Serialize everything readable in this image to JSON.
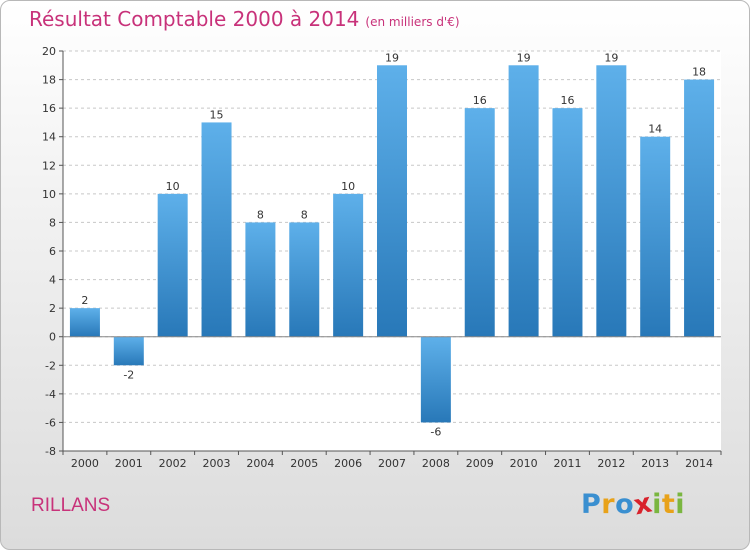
{
  "header": {
    "title": "Résultat Comptable 2000 à 2014",
    "subtitle": "(en milliers d'€)"
  },
  "footer": {
    "commune": "RILLANS",
    "logo_text": "Proxiti",
    "logo_letters": [
      {
        "ch": "P",
        "color": "#3a8fd0"
      },
      {
        "ch": "r",
        "color": "#e8a21a"
      },
      {
        "ch": "o",
        "color": "#3a8fd0"
      },
      {
        "ch": "x",
        "color": "#d8222c"
      },
      {
        "ch": "i",
        "color": "#7ab640"
      },
      {
        "ch": "t",
        "color": "#e8a21a"
      },
      {
        "ch": "i",
        "color": "#7ab640"
      }
    ]
  },
  "colors": {
    "title": "#c8327a",
    "bar_light": "#5eb0ea",
    "bar_dark": "#2878b8",
    "grid": "#c8c8c8",
    "axis": "#555555",
    "text": "#333333"
  },
  "chart_data": {
    "type": "bar",
    "title": "Résultat Comptable 2000 à 2014",
    "subtitle": "(en milliers d'€)",
    "xlabel": "",
    "ylabel": "",
    "categories": [
      "2000",
      "2001",
      "2002",
      "2003",
      "2004",
      "2005",
      "2006",
      "2007",
      "2008",
      "2009",
      "2010",
      "2011",
      "2012",
      "2013",
      "2014"
    ],
    "values": [
      2,
      -2,
      10,
      15,
      8,
      8,
      10,
      19,
      -6,
      16,
      19,
      16,
      19,
      14,
      18
    ],
    "data_labels": [
      "2",
      "-2",
      "10",
      "15",
      "8",
      "8",
      "10",
      "19",
      "-6",
      "16",
      "19",
      "16",
      "19",
      "14",
      "18"
    ],
    "ylim": [
      -8,
      20
    ],
    "yticks": [
      -8,
      -6,
      -4,
      -2,
      0,
      2,
      4,
      6,
      8,
      10,
      12,
      14,
      16,
      18,
      20
    ],
    "ytick_labels": [
      "-8",
      "-6",
      "-4",
      "-2",
      "0",
      "2",
      "4",
      "6",
      "8",
      "10",
      "12",
      "14",
      "16",
      "18",
      "20"
    ],
    "grid": "horizontal-dashed",
    "legend": "none"
  }
}
